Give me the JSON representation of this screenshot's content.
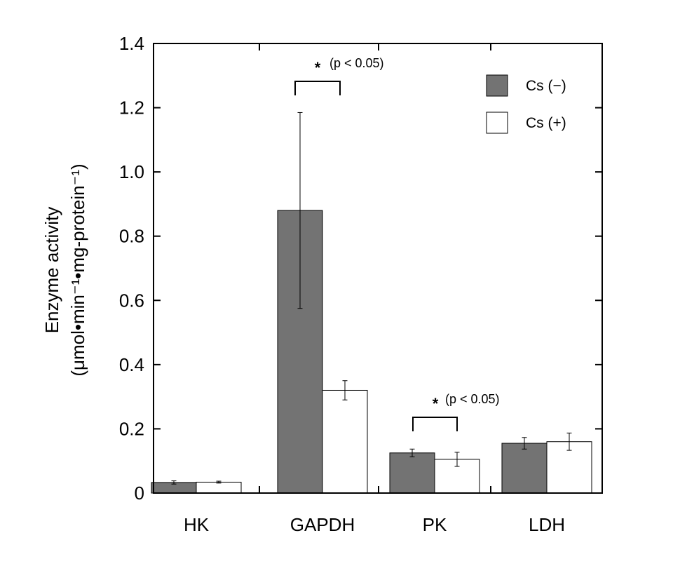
{
  "chart_data": {
    "type": "bar",
    "categories": [
      "HK",
      "GAPDH",
      "PK",
      "LDH"
    ],
    "series": [
      {
        "name": "Cs (−)",
        "values": [
          0.033,
          0.88,
          0.125,
          0.155
        ],
        "errors": [
          0.005,
          0.305,
          0.012,
          0.018
        ],
        "color": "#737373"
      },
      {
        "name": "Cs (+)",
        "values": [
          0.034,
          0.32,
          0.105,
          0.16
        ],
        "errors": [
          0.003,
          0.03,
          0.022,
          0.027
        ],
        "color": "#ffffff"
      }
    ],
    "ylabel_line1": "Enzyme activity",
    "ylabel_line2": "(μmol•min⁻¹•mg-protein⁻¹)",
    "ylim": [
      0,
      1.4
    ],
    "yticks": [
      0,
      0.2,
      0.4,
      0.6,
      0.8,
      1.0,
      1.2,
      1.4
    ],
    "ytick_labels": [
      "0",
      "0.2",
      "0.4",
      "0.6",
      "0.8",
      "1.0",
      "1.2",
      "1.4"
    ],
    "legend_position": "top-right",
    "grid": false,
    "annotations": [
      {
        "category": "GAPDH",
        "star": "*",
        "text": "(p < 0.05)"
      },
      {
        "category": "PK",
        "star": "*",
        "text": "(p < 0.05)"
      }
    ]
  }
}
